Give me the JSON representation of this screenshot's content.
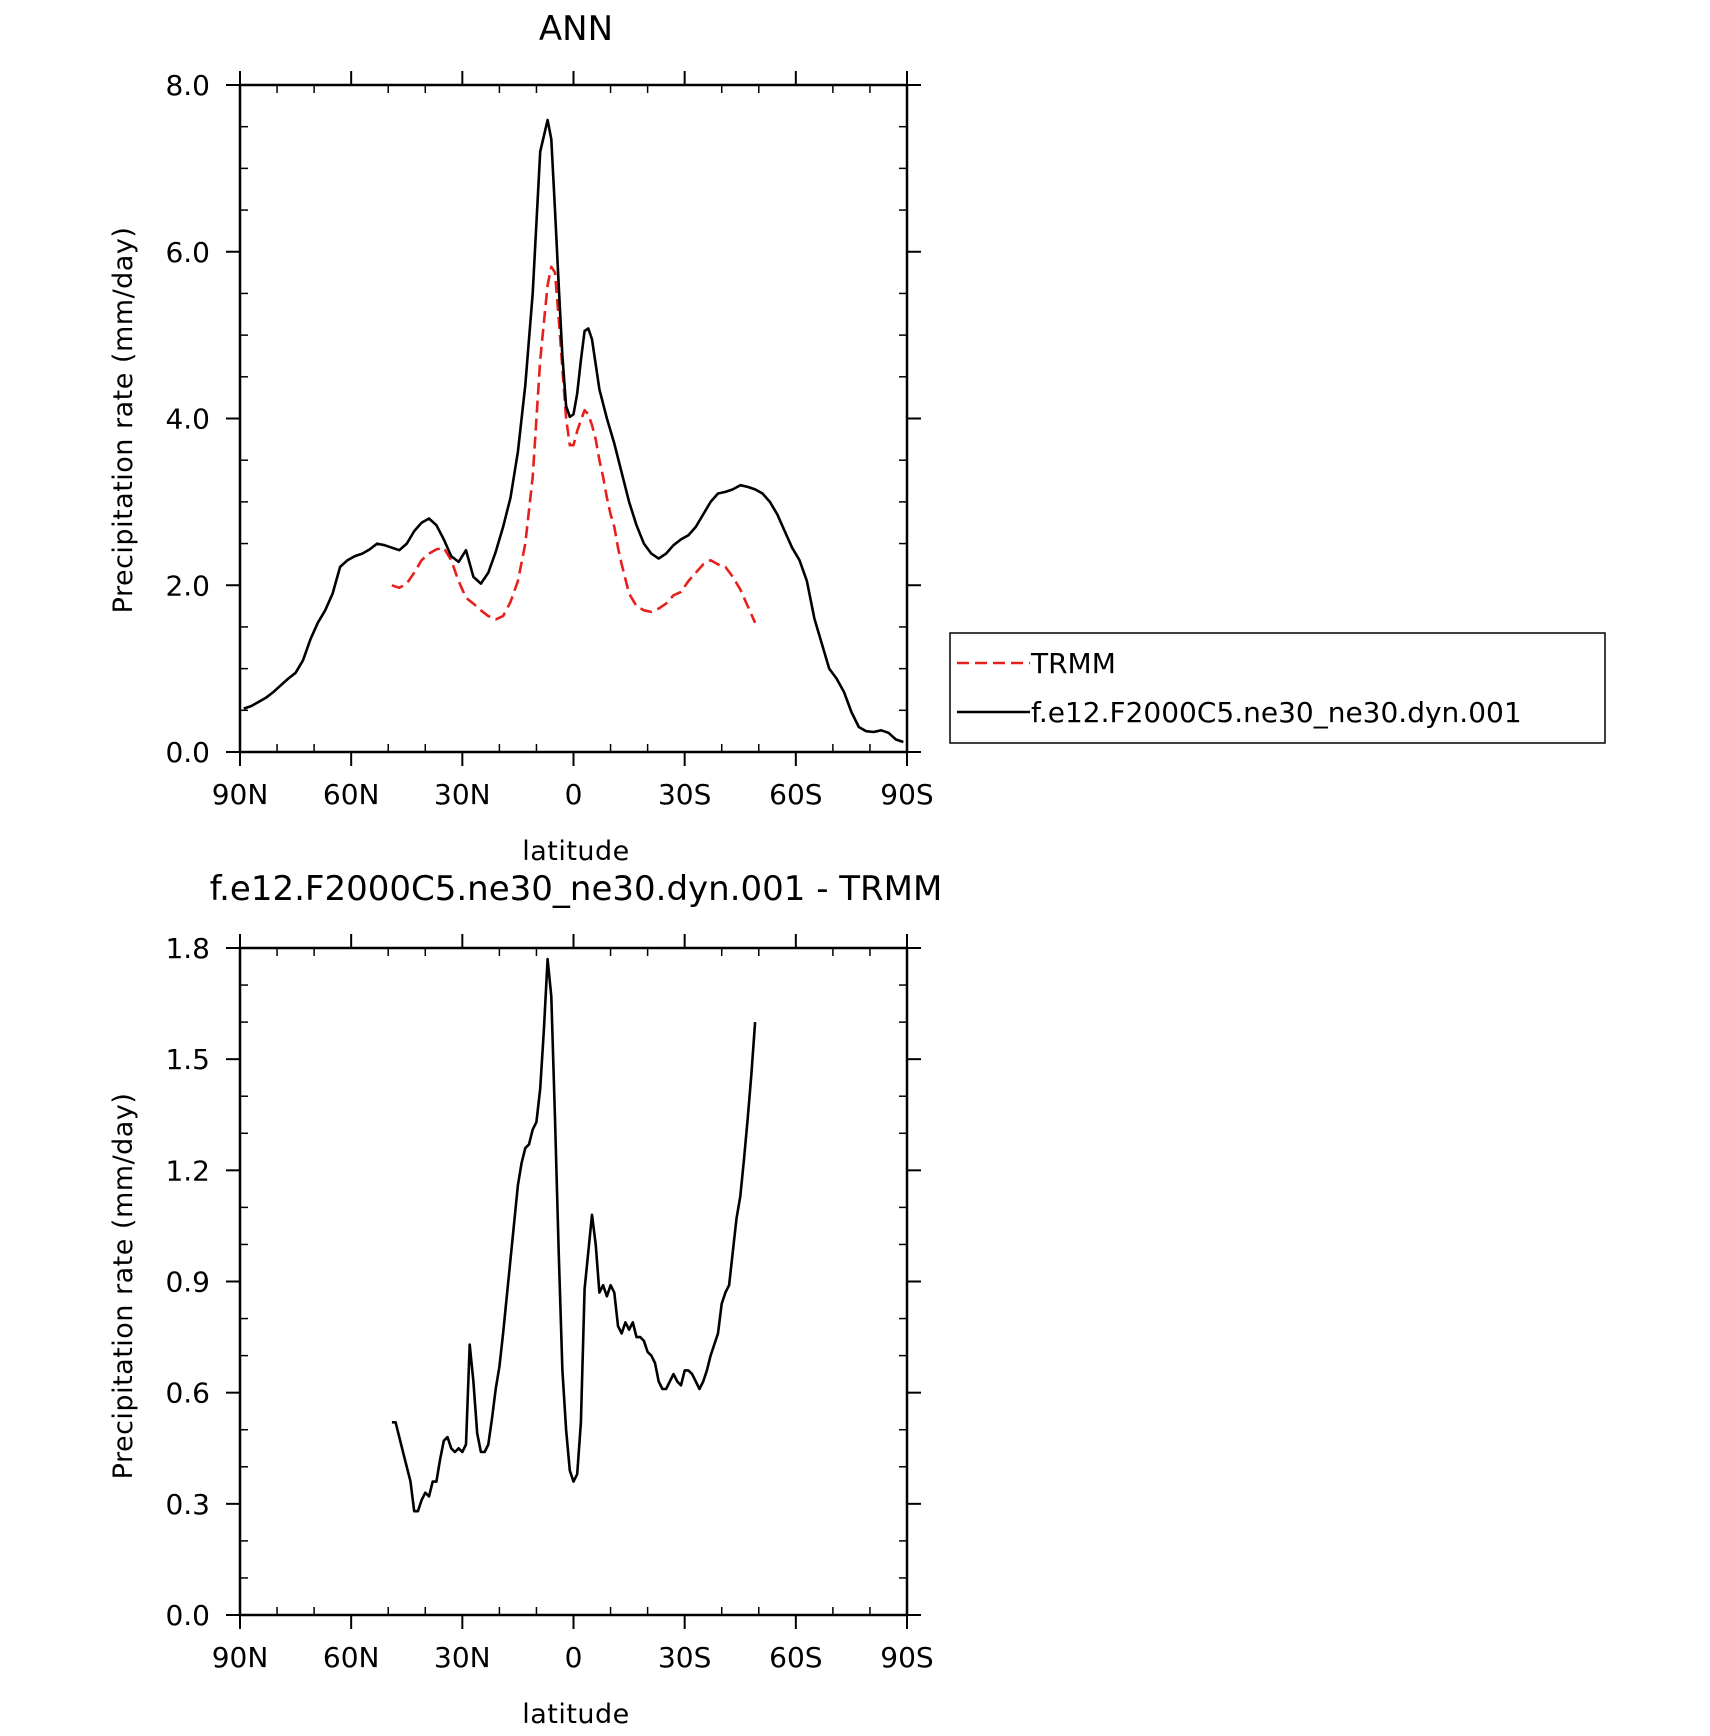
{
  "chart_data": [
    {
      "type": "line",
      "title": "ANN",
      "xlabel": "latitude",
      "ylabel": "Precipitation rate (mm/day)",
      "xlim": [
        90,
        -90
      ],
      "ylim": [
        0,
        8
      ],
      "xticks": [
        {
          "value": 90,
          "label": "90N"
        },
        {
          "value": 60,
          "label": "60N"
        },
        {
          "value": 30,
          "label": "30N"
        },
        {
          "value": 0,
          "label": "0"
        },
        {
          "value": -30,
          "label": "30S"
        },
        {
          "value": -60,
          "label": "60S"
        },
        {
          "value": -90,
          "label": "90S"
        }
      ],
      "yticks": [
        {
          "value": 0,
          "label": "0.0"
        },
        {
          "value": 2,
          "label": "2.0"
        },
        {
          "value": 4,
          "label": "4.0"
        },
        {
          "value": 6,
          "label": "6.0"
        },
        {
          "value": 8,
          "label": "8.0"
        }
      ],
      "legend_position": "right",
      "series": [
        {
          "name": "TRMM",
          "color": "#e8201b",
          "dash": "dashed",
          "x": [
            49,
            47,
            45,
            43,
            41,
            39,
            37,
            35,
            33,
            31,
            29,
            27,
            25,
            23,
            21,
            19,
            17,
            15,
            13,
            11,
            9,
            7,
            6,
            5,
            4,
            3,
            2,
            1,
            0,
            -1,
            -2,
            -3,
            -4,
            -5,
            -6,
            -7,
            -8,
            -9,
            -10,
            -11,
            -12,
            -13,
            -15,
            -17,
            -19,
            -21,
            -23,
            -25,
            -27,
            -29,
            -31,
            -33,
            -35,
            -37,
            -39,
            -41,
            -43,
            -45,
            -47,
            -49
          ],
          "y": [
            2.0,
            1.97,
            2.02,
            2.15,
            2.3,
            2.38,
            2.43,
            2.45,
            2.3,
            2.05,
            1.85,
            1.78,
            1.7,
            1.63,
            1.59,
            1.63,
            1.8,
            2.05,
            2.5,
            3.3,
            4.7,
            5.6,
            5.82,
            5.75,
            5.2,
            4.6,
            4.0,
            3.68,
            3.68,
            3.85,
            3.98,
            4.1,
            4.05,
            3.92,
            3.75,
            3.5,
            3.3,
            3.05,
            2.85,
            2.7,
            2.45,
            2.25,
            1.9,
            1.75,
            1.7,
            1.68,
            1.72,
            1.78,
            1.88,
            1.92,
            2.05,
            2.15,
            2.25,
            2.3,
            2.25,
            2.22,
            2.1,
            1.95,
            1.75,
            1.55
          ]
        },
        {
          "name": "f.e12.F2000C5.ne30_ne30.dyn.001",
          "color": "#000000",
          "dash": "solid",
          "x": [
            89,
            87,
            85,
            83,
            81,
            79,
            77,
            75,
            73,
            71,
            69,
            67,
            65,
            63,
            61,
            59,
            57,
            55,
            53,
            51,
            49,
            47,
            45,
            43,
            41,
            39,
            37,
            35,
            33,
            31,
            29,
            27,
            25,
            23,
            21,
            19,
            17,
            15,
            13,
            11,
            9,
            7,
            6,
            5,
            4,
            3,
            2,
            1,
            0,
            -1,
            -2,
            -3,
            -4,
            -5,
            -6,
            -7,
            -9,
            -11,
            -13,
            -15,
            -17,
            -19,
            -21,
            -23,
            -25,
            -27,
            -29,
            -31,
            -33,
            -35,
            -37,
            -39,
            -41,
            -43,
            -45,
            -47,
            -49,
            -51,
            -53,
            -55,
            -57,
            -59,
            -61,
            -63,
            -65,
            -67,
            -69,
            -71,
            -73,
            -75,
            -77,
            -79,
            -81,
            -83,
            -85,
            -87,
            -89
          ],
          "y": [
            0.52,
            0.55,
            0.6,
            0.65,
            0.72,
            0.8,
            0.88,
            0.95,
            1.1,
            1.35,
            1.55,
            1.7,
            1.9,
            2.22,
            2.3,
            2.35,
            2.38,
            2.43,
            2.5,
            2.48,
            2.45,
            2.42,
            2.5,
            2.65,
            2.75,
            2.8,
            2.72,
            2.55,
            2.35,
            2.28,
            2.42,
            2.1,
            2.02,
            2.15,
            2.4,
            2.7,
            3.05,
            3.6,
            4.4,
            5.5,
            7.2,
            7.58,
            7.35,
            6.5,
            5.6,
            4.75,
            4.15,
            4.02,
            4.05,
            4.3,
            4.7,
            5.05,
            5.08,
            4.95,
            4.65,
            4.35,
            4.0,
            3.7,
            3.35,
            3.0,
            2.72,
            2.5,
            2.38,
            2.32,
            2.38,
            2.48,
            2.55,
            2.6,
            2.7,
            2.85,
            3.0,
            3.1,
            3.12,
            3.15,
            3.2,
            3.18,
            3.15,
            3.1,
            3.0,
            2.85,
            2.65,
            2.45,
            2.3,
            2.05,
            1.6,
            1.3,
            1.0,
            0.88,
            0.72,
            0.48,
            0.3,
            0.25,
            0.24,
            0.26,
            0.23,
            0.15,
            0.12
          ]
        }
      ]
    },
    {
      "type": "line",
      "title": "f.e12.F2000C5.ne30_ne30.dyn.001 - TRMM",
      "xlabel": "latitude",
      "ylabel": "Precipitation rate (mm/day)",
      "xlim": [
        90,
        -90
      ],
      "ylim": [
        0,
        1.8
      ],
      "xticks": [
        {
          "value": 90,
          "label": "90N"
        },
        {
          "value": 60,
          "label": "60N"
        },
        {
          "value": 30,
          "label": "30N"
        },
        {
          "value": 0,
          "label": "0"
        },
        {
          "value": -30,
          "label": "30S"
        },
        {
          "value": -60,
          "label": "60S"
        },
        {
          "value": -90,
          "label": "90S"
        }
      ],
      "yticks": [
        {
          "value": 0,
          "label": "0.0"
        },
        {
          "value": 0.3,
          "label": "0.3"
        },
        {
          "value": 0.6,
          "label": "0.6"
        },
        {
          "value": 0.9,
          "label": "0.9"
        },
        {
          "value": 1.2,
          "label": "1.2"
        },
        {
          "value": 1.5,
          "label": "1.5"
        },
        {
          "value": 1.8,
          "label": "1.8"
        }
      ],
      "series": [
        {
          "color": "#000000",
          "dash": "solid",
          "x": [
            49,
            48,
            46,
            44,
            43,
            42,
            41,
            40,
            39,
            38,
            37,
            36,
            35,
            34,
            33,
            32,
            31,
            30,
            29,
            28,
            27,
            26,
            25,
            24,
            23,
            22,
            21,
            20,
            19,
            18,
            17,
            16,
            15,
            14,
            13,
            12,
            11,
            10,
            9,
            8,
            7,
            6,
            5,
            4,
            3,
            2,
            1,
            0,
            -1,
            -2,
            -3,
            -4,
            -5,
            -6,
            -7,
            -8,
            -9,
            -10,
            -11,
            -12,
            -13,
            -14,
            -15,
            -16,
            -17,
            -18,
            -19,
            -20,
            -21,
            -22,
            -23,
            -24,
            -25,
            -26,
            -27,
            -28,
            -29,
            -30,
            -31,
            -32,
            -33,
            -34,
            -35,
            -36,
            -37,
            -38,
            -39,
            -40,
            -41,
            -42,
            -43,
            -44,
            -45,
            -46,
            -47,
            -48,
            -49
          ],
          "y": [
            0.52,
            0.52,
            0.44,
            0.36,
            0.28,
            0.28,
            0.31,
            0.33,
            0.32,
            0.36,
            0.36,
            0.42,
            0.47,
            0.48,
            0.45,
            0.44,
            0.45,
            0.44,
            0.46,
            0.73,
            0.63,
            0.49,
            0.44,
            0.44,
            0.46,
            0.53,
            0.61,
            0.67,
            0.76,
            0.86,
            0.96,
            1.06,
            1.16,
            1.22,
            1.26,
            1.27,
            1.31,
            1.33,
            1.42,
            1.58,
            1.77,
            1.67,
            1.34,
            0.98,
            0.66,
            0.5,
            0.39,
            0.36,
            0.38,
            0.52,
            0.88,
            0.98,
            1.08,
            1.0,
            0.87,
            0.89,
            0.86,
            0.89,
            0.87,
            0.78,
            0.76,
            0.79,
            0.77,
            0.79,
            0.75,
            0.75,
            0.74,
            0.71,
            0.7,
            0.68,
            0.63,
            0.61,
            0.61,
            0.63,
            0.65,
            0.63,
            0.62,
            0.66,
            0.66,
            0.65,
            0.63,
            0.61,
            0.63,
            0.66,
            0.7,
            0.73,
            0.76,
            0.84,
            0.87,
            0.89,
            0.98,
            1.07,
            1.13,
            1.23,
            1.34,
            1.46,
            1.6
          ]
        }
      ]
    }
  ],
  "legend": {
    "items": [
      "TRMM",
      "f.e12.F2000C5.ne30_ne30.dyn.001"
    ]
  }
}
